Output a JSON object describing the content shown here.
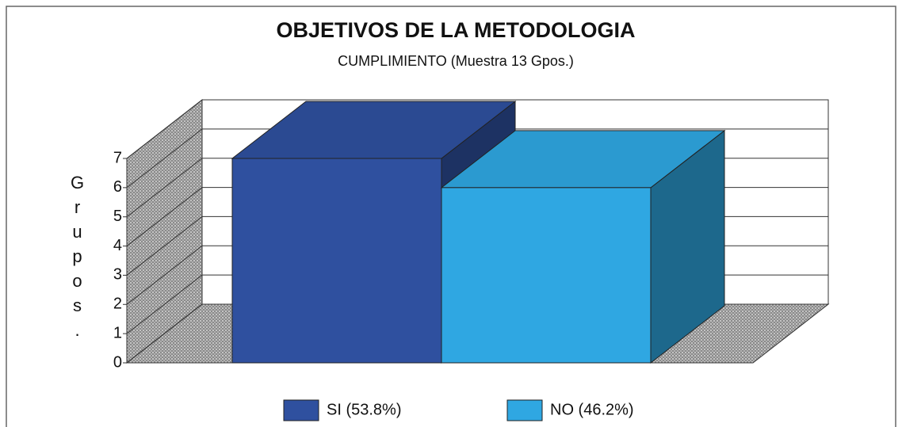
{
  "chart_data": {
    "type": "bar3d",
    "title": "OBJETIVOS DE LA METODOLOGIA",
    "subtitle": "CUMPLIMIENTO (Muestra 13 Gpos.)",
    "y_label": "Grupos.",
    "categories": [
      null
    ],
    "series": [
      {
        "name": "SI (53.8%)",
        "color": "#2f509f",
        "values": [
          7
        ]
      },
      {
        "name": "NO (46.2%)",
        "color": "#2fa7e2",
        "values": [
          6
        ]
      }
    ],
    "ylim": [
      0,
      7
    ],
    "yticks": [
      0,
      1,
      2,
      3,
      4,
      5,
      6,
      7
    ],
    "grid": true,
    "legend": "bottom"
  }
}
